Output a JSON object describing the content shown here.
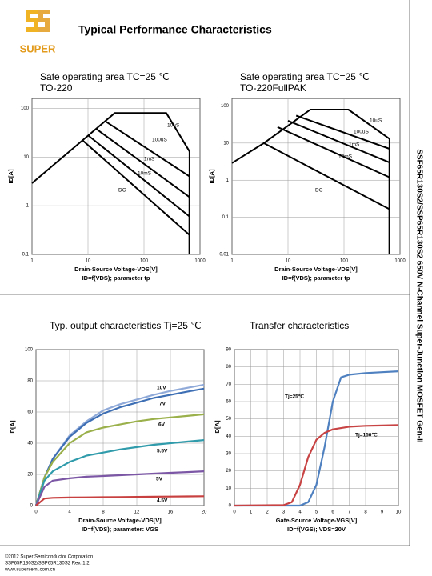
{
  "header": {
    "logo_text": "SUPER",
    "title": "Typical Performance Characteristics"
  },
  "side_title": "SSF65R130S2/SSP65R130S2 650V N-Channel Super-Junction MOSFET Gen-II",
  "footer": {
    "lines": [
      "©2012 Super Semiconductor Corporation",
      "SSF65R130S2/SSP65R130S2 Rev. 1.2",
      "www.supersemi.com.cn"
    ]
  },
  "chart_data": [
    {
      "type": "line",
      "title": "Safe operating area TC=25 ℃",
      "subtitle": "TO-220",
      "xlabel": "Drain-Source Voltage-VDS[V]",
      "xlabel2": "ID=f(VDS); parameter tp",
      "ylabel": "ID[A]",
      "xscale": "log",
      "yscale": "log",
      "xlim": [
        1,
        1000
      ],
      "ylim": [
        0.1,
        160
      ],
      "xticks": [
        1,
        10,
        100,
        1000
      ],
      "yticks": [
        0.1,
        1,
        10,
        100
      ],
      "grid": true,
      "series": [
        {
          "name": "10uS",
          "color": "#000000",
          "x": [
            8,
            30,
            250,
            650,
            650
          ],
          "values": [
            22,
            80,
            80,
            13,
            0.1
          ]
        },
        {
          "name": "100uS",
          "color": "#000000",
          "x": [
            20,
            650,
            650
          ],
          "values": [
            55,
            4,
            0.1
          ]
        },
        {
          "name": "1mS",
          "color": "#000000",
          "x": [
            14,
            650,
            650
          ],
          "values": [
            38,
            1.5,
            0.1
          ]
        },
        {
          "name": "10mS",
          "color": "#000000",
          "x": [
            10,
            650,
            650
          ],
          "values": [
            28,
            0.6,
            0.1
          ]
        },
        {
          "name": "DC",
          "color": "#000000",
          "x": [
            1,
            8,
            650,
            650
          ],
          "values": [
            2.9,
            22,
            0.25,
            0.1
          ]
        }
      ]
    },
    {
      "type": "line",
      "title": "Safe operating area TC=25 ℃",
      "subtitle": "TO-220FullPAK",
      "xlabel": "Drain-Source Voltage-VDS[V]",
      "xlabel2": "ID=f(VDS); parameter tp",
      "ylabel": "ID[A]",
      "xscale": "log",
      "yscale": "log",
      "xlim": [
        1,
        1000
      ],
      "ylim": [
        0.01,
        160
      ],
      "xticks": [
        1,
        10,
        100,
        1000
      ],
      "yticks": [
        0.01,
        0.1,
        1,
        10,
        100
      ],
      "grid": true,
      "series": [
        {
          "name": "10uS",
          "color": "#000000",
          "x": [
            3.7,
            25,
            120,
            650,
            650
          ],
          "values": [
            10,
            80,
            80,
            13,
            0.01
          ]
        },
        {
          "name": "100uS",
          "color": "#000000",
          "x": [
            14,
            650,
            650
          ],
          "values": [
            55,
            7,
            0.01
          ]
        },
        {
          "name": "1mS",
          "color": "#000000",
          "x": [
            10,
            650,
            650
          ],
          "values": [
            40,
            3,
            0.01
          ]
        },
        {
          "name": "10mS",
          "color": "#000000",
          "x": [
            6.5,
            650,
            650
          ],
          "values": [
            27,
            1.2,
            0.01
          ]
        },
        {
          "name": "DC",
          "color": "#000000",
          "x": [
            1,
            3.7,
            650,
            650
          ],
          "values": [
            2.9,
            10,
            0.165,
            0.01
          ]
        }
      ]
    },
    {
      "type": "line",
      "title": "Typ. output characteristics Tj=25 ℃",
      "xlabel": "Drain-Source Voltage-VDS[V]",
      "xlabel2": "ID=f(VDS); parameter: VGS",
      "ylabel": "ID[A]",
      "xlim": [
        0,
        20
      ],
      "ylim": [
        0,
        100
      ],
      "xticks": [
        0,
        4,
        8,
        12,
        16,
        20
      ],
      "yticks": [
        0,
        20,
        40,
        60,
        80,
        100
      ],
      "grid": true,
      "x": [
        0,
        1,
        2,
        4,
        6,
        8,
        10,
        12,
        14,
        16,
        18,
        20
      ],
      "series": [
        {
          "name": "10V",
          "color": "#8fa9d8",
          "values": [
            0,
            18,
            30,
            45,
            54,
            61,
            65,
            68,
            71,
            73.5,
            75.5,
            77.5
          ]
        },
        {
          "name": "7V",
          "color": "#3e6fb5",
          "values": [
            0,
            18,
            30,
            44,
            53,
            59,
            63,
            66,
            69,
            71,
            73,
            75
          ]
        },
        {
          "name": "6V",
          "color": "#9ab04a",
          "values": [
            0,
            18,
            28,
            40,
            47,
            50,
            52,
            54,
            55.5,
            56.5,
            57.5,
            58.5
          ]
        },
        {
          "name": "5.5V",
          "color": "#2f9bab",
          "values": [
            0,
            16,
            22,
            28,
            32,
            34,
            36,
            37.5,
            39,
            40,
            41,
            42
          ]
        },
        {
          "name": "5V",
          "color": "#7b57a5",
          "values": [
            0,
            12,
            16,
            17.5,
            18.5,
            19,
            19.5,
            20,
            20.5,
            21,
            21.5,
            22
          ]
        },
        {
          "name": "4.5V",
          "color": "#c8403f",
          "values": [
            0,
            4.5,
            5,
            5.2,
            5.3,
            5.4,
            5.5,
            5.6,
            5.7,
            5.8,
            5.9,
            6
          ]
        }
      ]
    },
    {
      "type": "line",
      "title": "Transfer characteristics",
      "xlabel": "Gate-Source Voltage-VGS[V]",
      "xlabel2": "ID=f(VGS); VDS=20V",
      "ylabel": "ID[A]",
      "xlim": [
        0,
        10
      ],
      "ylim": [
        0,
        90
      ],
      "xticks": [
        0,
        1,
        2,
        3,
        4,
        5,
        6,
        7,
        8,
        9,
        10
      ],
      "yticks": [
        0,
        10,
        20,
        30,
        40,
        50,
        60,
        70,
        80,
        90
      ],
      "grid": true,
      "series": [
        {
          "name": "Tj=25℃",
          "color": "#4f80c0",
          "x": [
            0,
            3,
            4,
            4.5,
            5,
            5.5,
            6,
            6.5,
            7,
            8,
            9,
            10
          ],
          "values": [
            0,
            0,
            0,
            2,
            12,
            34,
            60,
            74,
            75.5,
            76.5,
            77,
            77.5
          ]
        },
        {
          "name": "Tj=150℃",
          "color": "#c84343",
          "x": [
            0,
            3,
            3.5,
            4,
            4.5,
            5,
            5.5,
            6,
            7,
            8,
            9,
            10
          ],
          "values": [
            0,
            0.3,
            2,
            12,
            28,
            38,
            42,
            44,
            45.5,
            46,
            46.2,
            46.5
          ]
        }
      ]
    }
  ]
}
